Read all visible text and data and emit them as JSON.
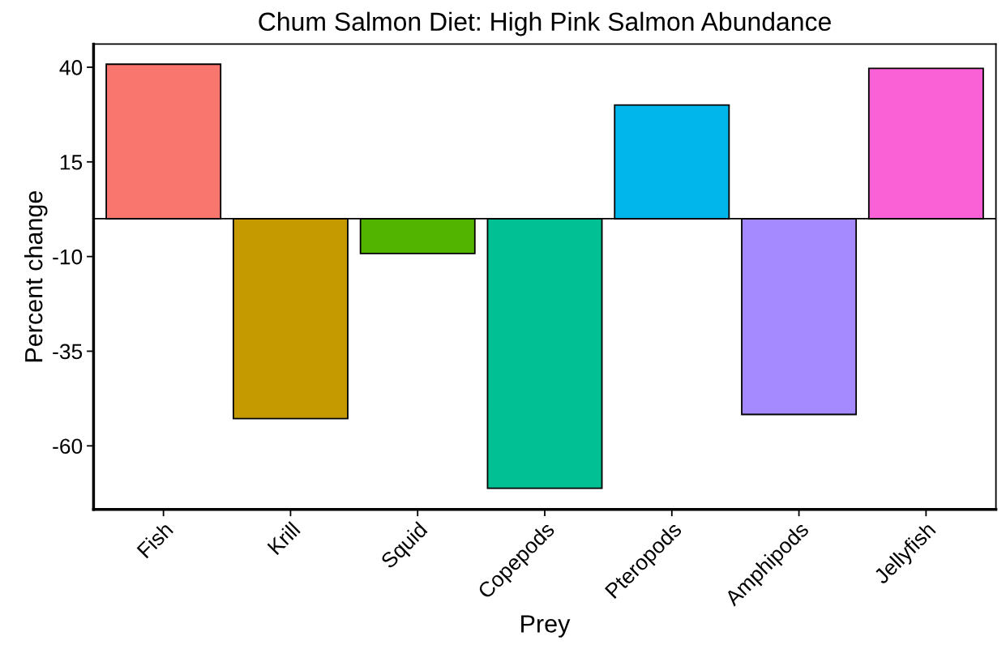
{
  "chart_data": {
    "type": "bar",
    "title": "Chum Salmon Diet: High Pink Salmon Abundance",
    "xlabel": "Prey",
    "ylabel": "Percent change",
    "categories": [
      "Fish",
      "Krill",
      "Squid",
      "Copepods",
      "Pteropods",
      "Amphipods",
      "Jellyfish"
    ],
    "values": [
      40.8,
      -52.8,
      -9.2,
      -71.2,
      30.0,
      -51.7,
      39.7
    ],
    "colors": [
      "#f8766d",
      "#c49a00",
      "#53b400",
      "#00c094",
      "#00b6eb",
      "#a58aff",
      "#fb61d7"
    ],
    "ylim": [
      -76.8,
      46.1
    ],
    "yticks": [
      -60,
      -35,
      -10,
      15,
      40
    ],
    "ref_lines": [
      {
        "axis": "y",
        "value": 0,
        "color": "#000000"
      }
    ],
    "grid": false,
    "legend": false
  }
}
